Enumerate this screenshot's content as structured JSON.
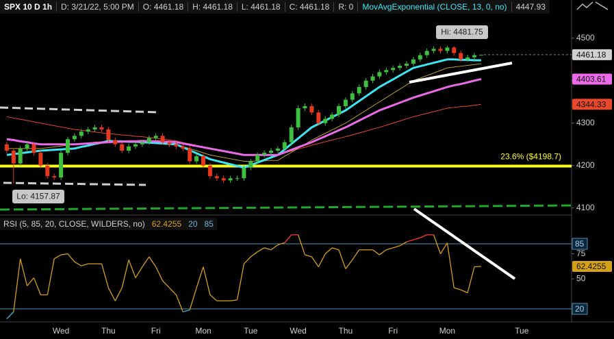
{
  "chart_data": [
    {
      "type": "candlestick",
      "header": [
        "SPX 10 D 1h",
        "D: 3/21/22, 5:00 PM",
        "O: 4461.18",
        "H: 4461.18",
        "L: 4461.18",
        "C: 4461.18",
        "R: 0",
        "MovAvgExponential (CLOSE, 13, 0, no)"
      ],
      "annotations": [
        "Hi: 4481.75",
        "Lo: 4157.87"
      ],
      "level": {
        "value": 4198.7,
        "label": "23.6%  ($4198.7)",
        "color": "#ffff1a"
      },
      "categories": [
        null,
        null,
        null,
        null,
        null,
        null,
        null,
        null,
        "Wed",
        null,
        null,
        null,
        null,
        null,
        null,
        "Thu",
        null,
        null,
        null,
        null,
        null,
        null,
        "Fri",
        null,
        null,
        null,
        null,
        null,
        null,
        "Mon",
        null,
        null,
        null,
        null,
        null,
        null,
        "Tue",
        null,
        null,
        null,
        null,
        null,
        null,
        "Wed",
        null,
        null,
        null,
        null,
        null,
        null,
        "Thu",
        null,
        null,
        null,
        null,
        null,
        null,
        "Fri",
        null,
        null,
        null,
        null,
        null,
        null,
        null,
        "Mon",
        null,
        null,
        null,
        null,
        null,
        null,
        null,
        null,
        null,
        null,
        "Tue"
      ],
      "open": [
        4250,
        4235,
        4205,
        4240,
        4250,
        4230,
        4200,
        4175,
        4172,
        4230,
        4262,
        4270,
        4280,
        4285,
        4290,
        4285,
        4260,
        4250,
        4235,
        4245,
        4250,
        4255,
        4265,
        4270,
        4255,
        4250,
        4245,
        4240,
        4210,
        4222,
        4200,
        4175,
        4170,
        4165,
        4170,
        4170,
        4195,
        4210,
        4225,
        4230,
        4235,
        4240,
        4255,
        4290,
        4335,
        4340,
        4325,
        4300,
        4310,
        4320,
        4340,
        4355,
        4370,
        4385,
        4400,
        4410,
        4420,
        4425,
        4430,
        4435,
        4440,
        4450,
        4460,
        4470,
        4475,
        4470,
        4478,
        4465,
        4450,
        4455,
        4461.18,
        null,
        null,
        null,
        null,
        null,
        null
      ],
      "high": [
        4256,
        4241,
        4246,
        4256,
        4256,
        4236,
        4206,
        4181,
        4236,
        4268,
        4276,
        4286,
        4291,
        4296,
        4296,
        4291,
        4266,
        4256,
        4251,
        4256,
        4261,
        4271,
        4276,
        4276,
        4261,
        4256,
        4251,
        4246,
        4228,
        4228,
        4206,
        4181,
        4176,
        4176,
        4176,
        4201,
        4216,
        4231,
        4236,
        4241,
        4246,
        4261,
        4296,
        4341,
        4346,
        4346,
        4331,
        4316,
        4326,
        4346,
        4361,
        4376,
        4391,
        4406,
        4416,
        4426,
        4431,
        4436,
        4441,
        4446,
        4456,
        4466,
        4476,
        4481,
        4481,
        4481.75,
        4481,
        4471,
        4461,
        4466,
        4461.18,
        null,
        null,
        null,
        null,
        null,
        null
      ],
      "low": [
        4229,
        4157.87,
        4199,
        4234,
        4224,
        4194,
        4169,
        4166,
        4166,
        4224,
        4256,
        4264,
        4274,
        4279,
        4279,
        4254,
        4244,
        4229,
        4229,
        4239,
        4244,
        4249,
        4259,
        4249,
        4244,
        4239,
        4234,
        4204,
        4204,
        4194,
        4169,
        4164,
        4159,
        4159,
        4164,
        4164,
        4189,
        4204,
        4219,
        4224,
        4229,
        4234,
        4249,
        4284,
        4329,
        4319,
        4294,
        4294,
        4304,
        4314,
        4334,
        4349,
        4364,
        4379,
        4394,
        4404,
        4414,
        4419,
        4424,
        4429,
        4434,
        4444,
        4454,
        4464,
        4464,
        4464,
        4459,
        4444,
        4444,
        4449,
        4461.18,
        null,
        null,
        null,
        null,
        null,
        null
      ],
      "close": [
        4235,
        4205,
        4240,
        4250,
        4230,
        4200,
        4175,
        4172,
        4230,
        4262,
        4270,
        4280,
        4285,
        4290,
        4285,
        4260,
        4250,
        4235,
        4245,
        4250,
        4255,
        4265,
        4270,
        4255,
        4250,
        4245,
        4240,
        4210,
        4222,
        4200,
        4175,
        4170,
        4165,
        4170,
        4170,
        4195,
        4210,
        4225,
        4230,
        4235,
        4240,
        4255,
        4290,
        4335,
        4340,
        4325,
        4300,
        4310,
        4320,
        4340,
        4355,
        4370,
        4385,
        4400,
        4410,
        4420,
        4425,
        4430,
        4435,
        4440,
        4450,
        4460,
        4470,
        4475,
        4470,
        4478,
        4465,
        4450,
        4455,
        4460,
        4461.18,
        null,
        null,
        null,
        null,
        null,
        null
      ],
      "up_color": "#3fbf3f",
      "down_color": "#e5391f",
      "last_color": "#d0d0d0",
      "series": [
        {
          "color": "#3ee6f2",
          "width": 3,
          "values": [
            4225,
            4227,
            4229,
            4231,
            4233,
            4235,
            4236,
            4237,
            4238,
            4239,
            4240,
            4244,
            4247,
            4251,
            4254,
            4258,
            4257,
            4257,
            4256,
            4256,
            4255,
            4254,
            4253,
            4252,
            4251,
            4250,
            4243,
            4236,
            4229,
            4222,
            4215,
            4211,
            4207,
            4203,
            4199,
            4195,
            4201,
            4207,
            4213,
            4219,
            4225,
            4238,
            4251,
            4264,
            4277,
            4290,
            4298,
            4306,
            4314,
            4322,
            4330,
            4341,
            4352,
            4363,
            4374,
            4385,
            4394,
            4403,
            4412,
            4421,
            4430,
            4434,
            4438,
            4442,
            4446,
            4450,
            4450,
            4449,
            4449,
            4448,
            4447.93,
            null,
            null,
            null,
            null,
            null,
            null
          ]
        },
        {
          "color": "#ea6ae8",
          "width": 3,
          "badge": true,
          "values": [
            4262,
            4260,
            4257,
            4255,
            4252,
            4250,
            4250,
            4250,
            4250,
            4250,
            4250,
            4251,
            4252,
            4253,
            4254,
            4255,
            4256,
            4256,
            4257,
            4257,
            4258,
            4257,
            4257,
            4256,
            4256,
            4255,
            4252,
            4249,
            4246,
            4243,
            4240,
            4237,
            4234,
            4231,
            4228,
            4225,
            4225,
            4225,
            4225,
            4225,
            4225,
            4231,
            4237,
            4243,
            4249,
            4255,
            4262,
            4269,
            4276,
            4283,
            4290,
            4298,
            4306,
            4314,
            4322,
            4330,
            4336,
            4342,
            4348,
            4354,
            4360,
            4365,
            4370,
            4375,
            4380,
            4385,
            4389,
            4392,
            4396,
            4400,
            4403.61,
            null,
            null,
            null,
            null,
            null,
            null
          ]
        },
        {
          "color": "#e8482c",
          "width": 1,
          "badge": true,
          "values": [
            4315,
            4312,
            4309,
            4306,
            4303,
            4300,
            4297,
            4294,
            4291,
            4288,
            4285,
            4283,
            4281,
            4279,
            4277,
            4275,
            4274,
            4272,
            4271,
            4269,
            4268,
            4266,
            4264,
            4262,
            4260,
            4258,
            4254,
            4251,
            4247,
            4244,
            4240,
            4237,
            4234,
            4231,
            4228,
            4225,
            4225,
            4225,
            4225,
            4225,
            4225,
            4230,
            4234,
            4239,
            4243,
            4248,
            4252,
            4256,
            4260,
            4264,
            4268,
            4272,
            4277,
            4281,
            4286,
            4290,
            4295,
            4300,
            4305,
            4310,
            4315,
            4319,
            4323,
            4327,
            4331,
            4335,
            4337,
            4339,
            4340,
            4342,
            4344.33,
            null,
            null,
            null,
            null,
            null,
            null
          ]
        },
        {
          "color": "#b8a030",
          "width": 1,
          "values": [
            4240,
            4240,
            4240,
            4240,
            4240,
            4240,
            4242,
            4244,
            4246,
            4248,
            4250,
            4252,
            4253,
            4255,
            4256,
            4258,
            4258,
            4258,
            4258,
            4258,
            4258,
            4256,
            4255,
            4253,
            4252,
            4250,
            4245,
            4240,
            4235,
            4230,
            4225,
            4222,
            4219,
            4216,
            4213,
            4210,
            4210,
            4211,
            4211,
            4212,
            4212,
            4222,
            4231,
            4241,
            4250,
            4260,
            4268,
            4276,
            4284,
            4292,
            4300,
            4310,
            4320,
            4330,
            4340,
            4350,
            4360,
            4370,
            4380,
            4390,
            4400,
            4406,
            4412,
            4418,
            4424,
            4430,
            4432,
            4434,
            4436,
            4438,
            4440,
            null,
            null,
            null,
            null,
            null,
            null
          ]
        }
      ],
      "ylim": [
        4085,
        4590
      ],
      "yticks": [
        4100,
        4200,
        4300,
        4400,
        4500
      ]
    },
    {
      "type": "line",
      "title": "RSI (5, 85, 20, CLOSE, WILDERS, no)",
      "overbought": 85,
      "oversold": 20,
      "color": "#d4a017",
      "overbought_color": "#ff3b30",
      "oversold_color": "#35b8d8",
      "level_color": "#4f8fb8",
      "values": [
        10,
        17,
        70,
        43,
        51,
        34,
        34,
        70,
        74,
        75,
        67,
        63,
        65,
        65,
        65,
        41,
        28,
        41,
        69,
        51,
        62,
        72,
        62,
        48,
        41,
        34,
        17,
        19,
        41,
        62,
        34,
        28,
        28,
        28,
        29,
        65,
        72,
        77,
        81,
        79,
        84,
        86,
        94,
        94,
        74,
        72,
        62,
        75,
        81,
        79,
        60,
        69,
        79,
        79,
        79,
        74,
        79,
        81,
        83,
        87,
        89,
        91,
        94,
        94,
        75,
        86,
        41,
        39,
        36,
        62,
        62.4255,
        null,
        null,
        null,
        null,
        null,
        null
      ],
      "ylim": [
        7,
        111
      ],
      "yticks": [
        50,
        75
      ]
    }
  ]
}
